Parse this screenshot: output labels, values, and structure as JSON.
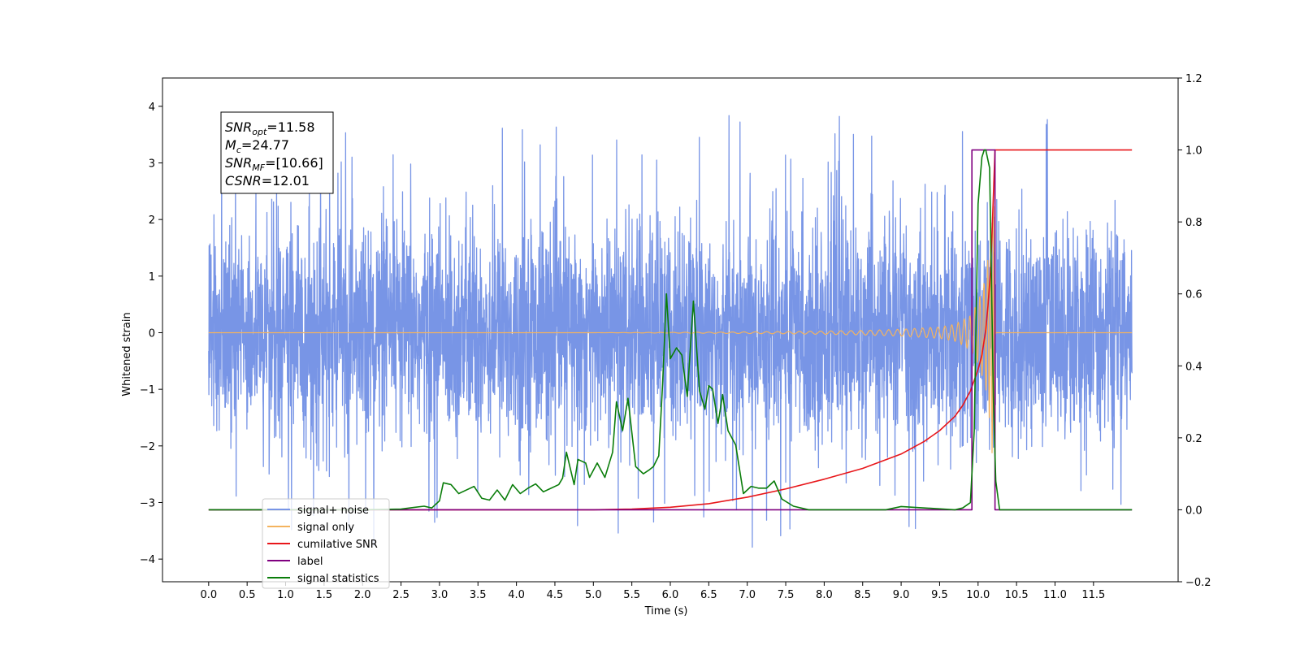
{
  "chart_data": {
    "type": "line",
    "xlabel": "Time (s)",
    "ylabel": "Whitened strain",
    "xlim": [
      -0.6,
      12.6
    ],
    "ylim": [
      -4.4,
      4.5
    ],
    "y2lim": [
      -0.2,
      1.2
    ],
    "x_ticks": [
      0.0,
      0.5,
      1.0,
      1.5,
      2.0,
      2.5,
      3.0,
      3.5,
      4.0,
      4.5,
      5.0,
      5.5,
      6.0,
      6.5,
      7.0,
      7.5,
      8.0,
      8.5,
      9.0,
      9.5,
      10.0,
      10.5,
      11.0,
      11.5
    ],
    "x_tick_labels": [
      "0.0",
      "0.5",
      "1.0",
      "1.5",
      "2.0",
      "2.5",
      "3.0",
      "3.5",
      "4.0",
      "4.5",
      "5.0",
      "5.5",
      "6.0",
      "6.5",
      "7.0",
      "7.5",
      "8.0",
      "8.5",
      "9.0",
      "9.5",
      "10.0",
      "10.5",
      "11.0",
      "11.5"
    ],
    "y_ticks": [
      -4,
      -3,
      -2,
      -1,
      0,
      1,
      2,
      3,
      4
    ],
    "y_tick_labels": [
      "−4",
      "−3",
      "−2",
      "−1",
      "0",
      "1",
      "2",
      "3",
      "4"
    ],
    "y2_ticks": [
      -0.2,
      0.0,
      0.2,
      0.4,
      0.6,
      0.8,
      1.0,
      1.2
    ],
    "y2_tick_labels": [
      "−0.2",
      "0.0",
      "0.2",
      "0.4",
      "0.6",
      "0.8",
      "1.0",
      "1.2"
    ],
    "grid": false,
    "legend_position": "lower-left",
    "annotation": [
      {
        "main": "SNR",
        "sub": "opt",
        "value": "=11.58"
      },
      {
        "main": "M",
        "sub": "c",
        "value": "=24.77"
      },
      {
        "main": "SNR",
        "sub": "MF",
        "value": "=[10.66]"
      },
      {
        "main": "CSNR",
        "sub": "",
        "value": "=12.01"
      }
    ],
    "series": [
      {
        "name": "signal+ noise",
        "axis": "left",
        "color": "#7895e6",
        "t_range": [
          0.0,
          12.0
        ],
        "envelope_typical": [
          -2.3,
          2.3
        ],
        "envelope_extremes": [
          -3.9,
          4.1
        ]
      },
      {
        "name": "signal only",
        "axis": "left",
        "color": "#f4b35e",
        "chirp_amplitude": [
          [
            0.0,
            0.0
          ],
          [
            5.0,
            0.0
          ],
          [
            6.5,
            0.01
          ],
          [
            7.5,
            0.02
          ],
          [
            8.5,
            0.04
          ],
          [
            9.0,
            0.06
          ],
          [
            9.5,
            0.1
          ],
          [
            9.7,
            0.15
          ],
          [
            9.9,
            0.3
          ],
          [
            10.0,
            0.55
          ],
          [
            10.1,
            1.0
          ],
          [
            10.15,
            1.6
          ],
          [
            10.2,
            2.5
          ],
          [
            10.23,
            0.0
          ],
          [
            12.0,
            0.0
          ]
        ]
      },
      {
        "name": "cumilative SNR",
        "axis": "right",
        "color": "#e8161a",
        "x": [
          0.0,
          5.0,
          5.5,
          6.0,
          6.5,
          7.0,
          7.5,
          8.0,
          8.5,
          9.0,
          9.3,
          9.5,
          9.7,
          9.8,
          9.9,
          10.0,
          10.05,
          10.1,
          10.13,
          10.16,
          10.18,
          10.2,
          10.22,
          12.0
        ],
        "y": [
          0.0,
          0.0,
          0.002,
          0.007,
          0.017,
          0.035,
          0.058,
          0.085,
          0.115,
          0.155,
          0.19,
          0.22,
          0.26,
          0.29,
          0.33,
          0.39,
          0.43,
          0.5,
          0.57,
          0.66,
          0.76,
          0.88,
          1.0,
          1.0
        ]
      },
      {
        "name": "label",
        "axis": "right",
        "color": "#800080",
        "x": [
          0.0,
          9.92,
          9.92,
          10.22,
          10.22,
          12.0
        ],
        "y": [
          0.0,
          0.0,
          1.0,
          1.0,
          0.0,
          0.0
        ]
      },
      {
        "name": "signal statistics",
        "axis": "right",
        "color": "#0a7d0a",
        "x": [
          0.0,
          2.0,
          2.5,
          2.8,
          2.9,
          3.0,
          3.05,
          3.15,
          3.25,
          3.35,
          3.45,
          3.55,
          3.65,
          3.75,
          3.85,
          3.95,
          4.05,
          4.15,
          4.25,
          4.35,
          4.45,
          4.55,
          4.6,
          4.65,
          4.75,
          4.8,
          4.9,
          4.95,
          5.0,
          5.05,
          5.15,
          5.25,
          5.3,
          5.38,
          5.45,
          5.55,
          5.65,
          5.72,
          5.78,
          5.85,
          5.9,
          5.95,
          6.0,
          6.08,
          6.15,
          6.22,
          6.3,
          6.38,
          6.45,
          6.5,
          6.55,
          6.62,
          6.68,
          6.75,
          6.85,
          6.95,
          7.05,
          7.15,
          7.25,
          7.35,
          7.45,
          7.6,
          7.8,
          8.8,
          9.0,
          9.7,
          9.8,
          9.9,
          9.95,
          10.0,
          10.05,
          10.08,
          10.1,
          10.15,
          10.2,
          10.23,
          10.28,
          12.0
        ],
        "y": [
          0.0,
          0.0,
          0.002,
          0.01,
          0.005,
          0.025,
          0.075,
          0.07,
          0.045,
          0.055,
          0.065,
          0.032,
          0.027,
          0.055,
          0.027,
          0.07,
          0.045,
          0.06,
          0.072,
          0.05,
          0.06,
          0.07,
          0.088,
          0.16,
          0.07,
          0.14,
          0.13,
          0.09,
          0.11,
          0.13,
          0.09,
          0.16,
          0.3,
          0.22,
          0.31,
          0.12,
          0.1,
          0.11,
          0.12,
          0.15,
          0.35,
          0.6,
          0.42,
          0.45,
          0.43,
          0.315,
          0.58,
          0.33,
          0.28,
          0.345,
          0.335,
          0.24,
          0.32,
          0.22,
          0.18,
          0.045,
          0.065,
          0.06,
          0.06,
          0.08,
          0.03,
          0.01,
          0.0,
          0.0,
          0.009,
          0.0,
          0.005,
          0.02,
          0.22,
          0.85,
          0.98,
          1.0,
          1.0,
          0.95,
          0.3,
          0.08,
          0.0,
          0.0
        ]
      }
    ]
  }
}
